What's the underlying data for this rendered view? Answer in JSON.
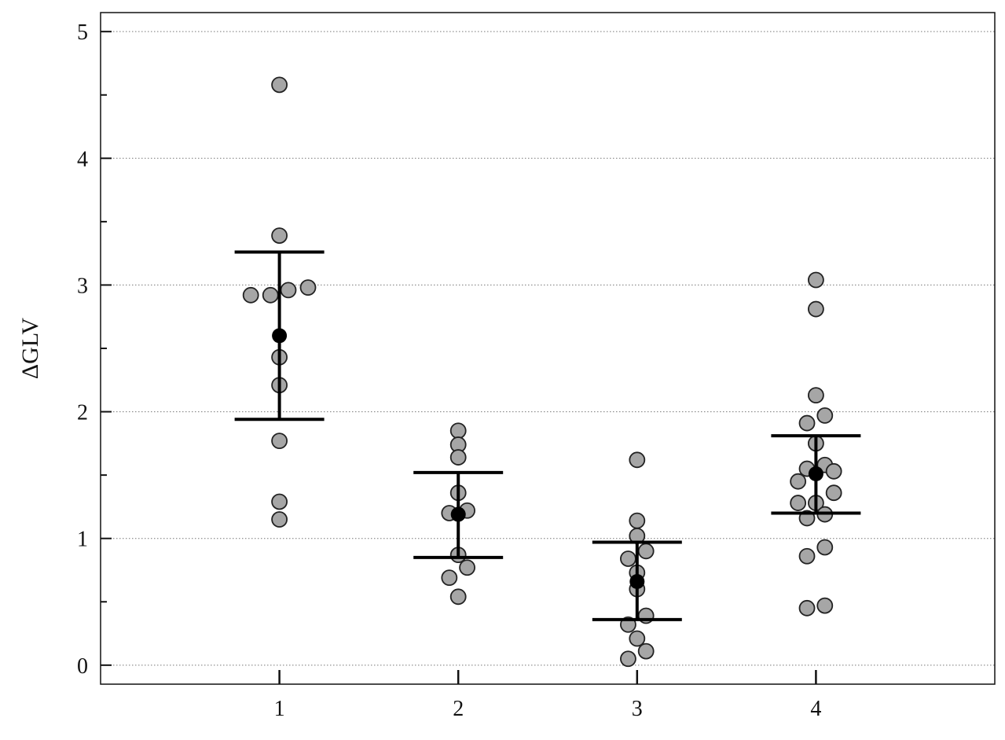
{
  "chart_data": {
    "type": "scatter",
    "title": "",
    "xlabel": "",
    "ylabel": "ΔGLV",
    "x_categories": [
      "1",
      "2",
      "3",
      "4"
    ],
    "xlim": [
      0,
      5
    ],
    "ylim": [
      -0.15,
      5.15
    ],
    "y_ticks": [
      0,
      1,
      2,
      3,
      4,
      5
    ],
    "y_tick_labels": [
      "0",
      "1",
      "2",
      "3",
      "4",
      "5"
    ],
    "grid": {
      "horizontal": true,
      "style": "dotted"
    },
    "point_color": "#a6a6a6",
    "mean_color": "#000000",
    "groups": [
      {
        "x": 1,
        "points": [
          {
            "x": 1.0,
            "y": 4.58
          },
          {
            "x": 1.0,
            "y": 3.39
          },
          {
            "x": 0.84,
            "y": 2.92
          },
          {
            "x": 0.95,
            "y": 2.92
          },
          {
            "x": 1.05,
            "y": 2.96
          },
          {
            "x": 1.16,
            "y": 2.98
          },
          {
            "x": 1.0,
            "y": 2.43
          },
          {
            "x": 1.0,
            "y": 2.21
          },
          {
            "x": 1.0,
            "y": 1.77
          },
          {
            "x": 1.0,
            "y": 1.29
          },
          {
            "x": 1.0,
            "y": 1.15
          }
        ],
        "mean": 2.6,
        "upper": 3.26,
        "lower": 1.94
      },
      {
        "x": 2,
        "points": [
          {
            "x": 2.0,
            "y": 1.85
          },
          {
            "x": 2.0,
            "y": 1.74
          },
          {
            "x": 2.0,
            "y": 1.64
          },
          {
            "x": 2.0,
            "y": 1.36
          },
          {
            "x": 1.95,
            "y": 1.2
          },
          {
            "x": 2.05,
            "y": 1.22
          },
          {
            "x": 2.0,
            "y": 0.87
          },
          {
            "x": 2.05,
            "y": 0.77
          },
          {
            "x": 1.95,
            "y": 0.69
          },
          {
            "x": 2.0,
            "y": 0.54
          }
        ],
        "mean": 1.19,
        "upper": 1.52,
        "lower": 0.85
      },
      {
        "x": 3,
        "points": [
          {
            "x": 3.0,
            "y": 1.62
          },
          {
            "x": 3.0,
            "y": 1.14
          },
          {
            "x": 3.0,
            "y": 1.02
          },
          {
            "x": 3.05,
            "y": 0.9
          },
          {
            "x": 2.95,
            "y": 0.84
          },
          {
            "x": 3.0,
            "y": 0.73
          },
          {
            "x": 3.0,
            "y": 0.6
          },
          {
            "x": 3.05,
            "y": 0.39
          },
          {
            "x": 2.95,
            "y": 0.32
          },
          {
            "x": 3.0,
            "y": 0.21
          },
          {
            "x": 3.05,
            "y": 0.11
          },
          {
            "x": 2.95,
            "y": 0.05
          }
        ],
        "mean": 0.66,
        "upper": 0.97,
        "lower": 0.36
      },
      {
        "x": 4,
        "points": [
          {
            "x": 4.0,
            "y": 3.04
          },
          {
            "x": 4.0,
            "y": 2.81
          },
          {
            "x": 4.0,
            "y": 2.13
          },
          {
            "x": 4.05,
            "y": 1.97
          },
          {
            "x": 3.95,
            "y": 1.91
          },
          {
            "x": 4.0,
            "y": 1.75
          },
          {
            "x": 3.95,
            "y": 1.55
          },
          {
            "x": 4.05,
            "y": 1.58
          },
          {
            "x": 4.1,
            "y": 1.53
          },
          {
            "x": 3.9,
            "y": 1.45
          },
          {
            "x": 4.1,
            "y": 1.36
          },
          {
            "x": 3.9,
            "y": 1.28
          },
          {
            "x": 4.0,
            "y": 1.28
          },
          {
            "x": 4.05,
            "y": 1.19
          },
          {
            "x": 3.95,
            "y": 1.16
          },
          {
            "x": 3.95,
            "y": 0.86
          },
          {
            "x": 4.05,
            "y": 0.93
          },
          {
            "x": 4.05,
            "y": 0.47
          },
          {
            "x": 3.95,
            "y": 0.45
          }
        ],
        "mean": 1.51,
        "upper": 1.81,
        "lower": 1.2
      }
    ]
  }
}
